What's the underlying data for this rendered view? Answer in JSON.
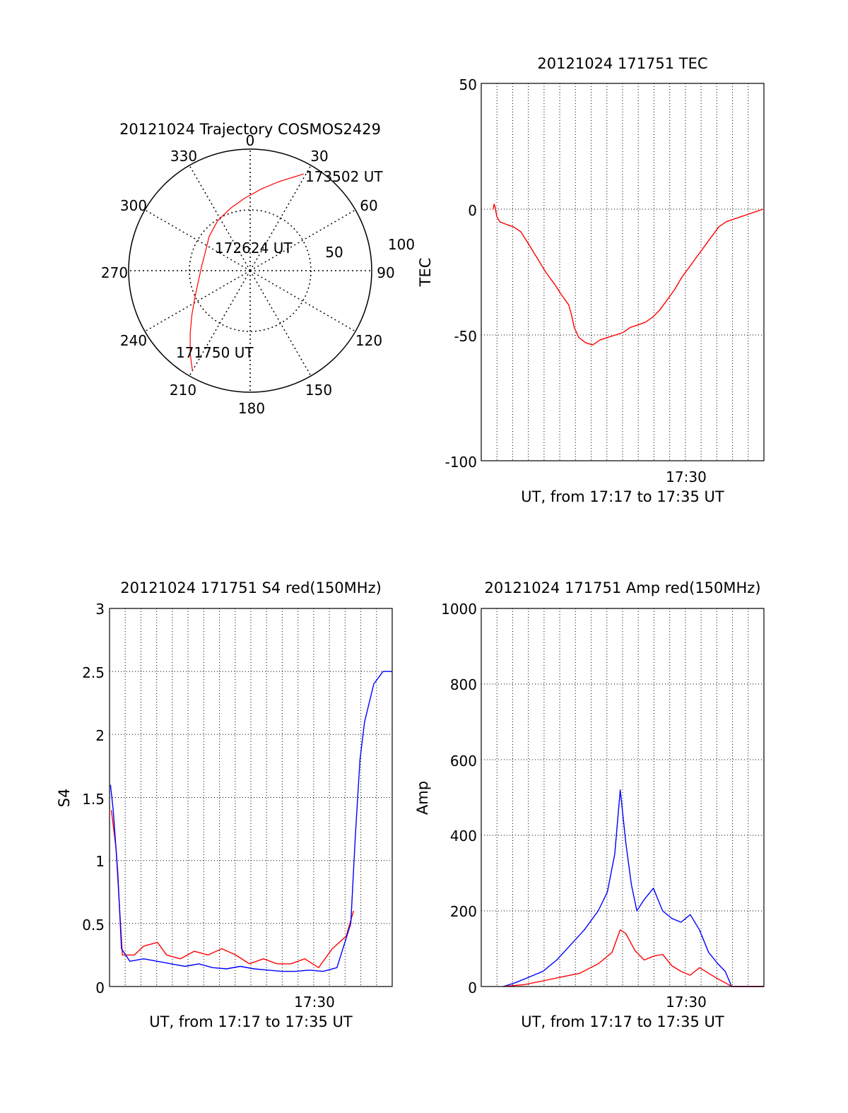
{
  "chart_data": [
    {
      "type": "polar",
      "title": "20121024 Trajectory COSMOS2429",
      "azimuth_labels": [
        "0",
        "30",
        "60",
        "90",
        "120",
        "150",
        "180",
        "210",
        "240",
        "270",
        "300",
        "330"
      ],
      "elevation_ring_labels": [
        "50",
        "100"
      ],
      "radial_lim": [
        0,
        100
      ],
      "time_labels": [
        "173502 UT",
        "172624 UT",
        "171750 UT"
      ],
      "track": [
        {
          "az": 210,
          "r": 95
        },
        {
          "az": 216,
          "r": 84
        },
        {
          "az": 224,
          "r": 71
        },
        {
          "az": 233,
          "r": 60
        },
        {
          "az": 245,
          "r": 50
        },
        {
          "az": 260,
          "r": 43
        },
        {
          "az": 276,
          "r": 40
        },
        {
          "az": 293,
          "r": 40
        },
        {
          "az": 310,
          "r": 44
        },
        {
          "az": 327,
          "r": 49
        },
        {
          "az": 343,
          "r": 54
        },
        {
          "az": 356,
          "r": 60
        },
        {
          "az": 8,
          "r": 68
        },
        {
          "az": 18,
          "r": 77
        },
        {
          "az": 25,
          "r": 85
        },
        {
          "az": 29,
          "r": 91
        }
      ],
      "colors": {
        "track": "#ff0000"
      }
    },
    {
      "type": "line",
      "title": "20121024 171751 TEC",
      "xlabel": "UT, from 17:17 to 17:35 UT",
      "ylabel": "TEC",
      "xlim": [
        17.283,
        17.59
      ],
      "ylim": [
        -100,
        50
      ],
      "yticks": [
        "50",
        "0",
        "-50",
        "-100"
      ],
      "xtick_label": "17:30",
      "xtick_value": 17.5,
      "grid": true,
      "series": [
        {
          "color": "#ff0000",
          "x": [
            17.296,
            17.297,
            17.298,
            17.3,
            17.303,
            17.31,
            17.318,
            17.326,
            17.333,
            17.343,
            17.353,
            17.363,
            17.37,
            17.378,
            17.381,
            17.384,
            17.389,
            17.396,
            17.404,
            17.412,
            17.42,
            17.429,
            17.437,
            17.445,
            17.453,
            17.461,
            17.469,
            17.477,
            17.485,
            17.493,
            17.501,
            17.509,
            17.517,
            17.525,
            17.533,
            17.541,
            17.549,
            17.557,
            17.565,
            17.573,
            17.581,
            17.589
          ],
          "y": [
            0,
            2,
            1,
            -3,
            -5,
            -6,
            -7,
            -9,
            -13,
            -19,
            -25,
            -30,
            -34,
            -38,
            -42,
            -47,
            -51,
            -53,
            -54,
            -52,
            -51,
            -50,
            -49,
            -47,
            -46,
            -45,
            -43,
            -40,
            -36,
            -32,
            -27,
            -23,
            -19,
            -15,
            -11,
            -7,
            -5,
            -4,
            -3,
            -2,
            -1,
            0
          ]
        }
      ]
    },
    {
      "type": "line",
      "title": "20121024 171751 S4 red(150MHz)",
      "xlabel": "UT, from 17:17 to 17:35 UT",
      "ylabel": "S4",
      "xlim": [
        17.283,
        17.59
      ],
      "ylim": [
        0,
        3
      ],
      "yticks": [
        "3",
        "2.5",
        "2",
        "1.5",
        "1",
        "0.5",
        "0"
      ],
      "xtick_label": "17:30",
      "xtick_value": 17.5,
      "grid": true,
      "series": [
        {
          "color": "#ff0000",
          "x": [
            17.285,
            17.29,
            17.297,
            17.31,
            17.32,
            17.335,
            17.345,
            17.36,
            17.375,
            17.39,
            17.405,
            17.42,
            17.435,
            17.45,
            17.465,
            17.48,
            17.495,
            17.51,
            17.525,
            17.54,
            17.548
          ],
          "y": [
            1.4,
            1.1,
            0.25,
            0.25,
            0.32,
            0.35,
            0.25,
            0.22,
            0.28,
            0.25,
            0.3,
            0.25,
            0.18,
            0.22,
            0.18,
            0.18,
            0.22,
            0.15,
            0.3,
            0.4,
            0.6
          ]
        },
        {
          "color": "#0000ff",
          "x": [
            17.284,
            17.287,
            17.292,
            17.296,
            17.305,
            17.32,
            17.335,
            17.35,
            17.365,
            17.38,
            17.395,
            17.41,
            17.425,
            17.44,
            17.455,
            17.47,
            17.485,
            17.5,
            17.515,
            17.53,
            17.545,
            17.55,
            17.555,
            17.56,
            17.57,
            17.58,
            17.59
          ],
          "y": [
            1.6,
            1.4,
            0.9,
            0.3,
            0.2,
            0.22,
            0.2,
            0.18,
            0.16,
            0.18,
            0.15,
            0.14,
            0.16,
            0.14,
            0.13,
            0.12,
            0.12,
            0.13,
            0.12,
            0.15,
            0.5,
            1.2,
            1.8,
            2.1,
            2.4,
            2.5,
            2.5
          ]
        }
      ]
    },
    {
      "type": "line",
      "title": "20121024 171751 Amp red(150MHz)",
      "xlabel": "UT, from 17:17 to 17:35 UT",
      "ylabel": "Amp",
      "xlim": [
        17.283,
        17.59
      ],
      "ylim": [
        0,
        1000
      ],
      "yticks": [
        "1000",
        "800",
        "600",
        "400",
        "200",
        "0"
      ],
      "xtick_label": "17:30",
      "xtick_value": 17.5,
      "grid": true,
      "series": [
        {
          "color": "#0000ff",
          "x": [
            17.307,
            17.32,
            17.335,
            17.35,
            17.365,
            17.38,
            17.395,
            17.41,
            17.42,
            17.428,
            17.434,
            17.44,
            17.446,
            17.452,
            17.46,
            17.47,
            17.48,
            17.49,
            17.5,
            17.51,
            17.52,
            17.53,
            17.54,
            17.548,
            17.555,
            17.59
          ],
          "y": [
            0,
            10,
            25,
            40,
            70,
            110,
            150,
            200,
            250,
            350,
            520,
            380,
            270,
            200,
            230,
            260,
            200,
            180,
            170,
            190,
            150,
            90,
            60,
            40,
            0,
            0
          ]
        },
        {
          "color": "#ff0000",
          "x": [
            17.307,
            17.33,
            17.35,
            17.37,
            17.39,
            17.41,
            17.425,
            17.434,
            17.44,
            17.45,
            17.46,
            17.47,
            17.48,
            17.49,
            17.5,
            17.51,
            17.52,
            17.53,
            17.54,
            17.548,
            17.555,
            17.59
          ],
          "y": [
            0,
            5,
            15,
            25,
            35,
            60,
            90,
            150,
            140,
            95,
            70,
            80,
            85,
            55,
            40,
            30,
            50,
            35,
            20,
            10,
            0,
            0
          ]
        }
      ]
    }
  ]
}
